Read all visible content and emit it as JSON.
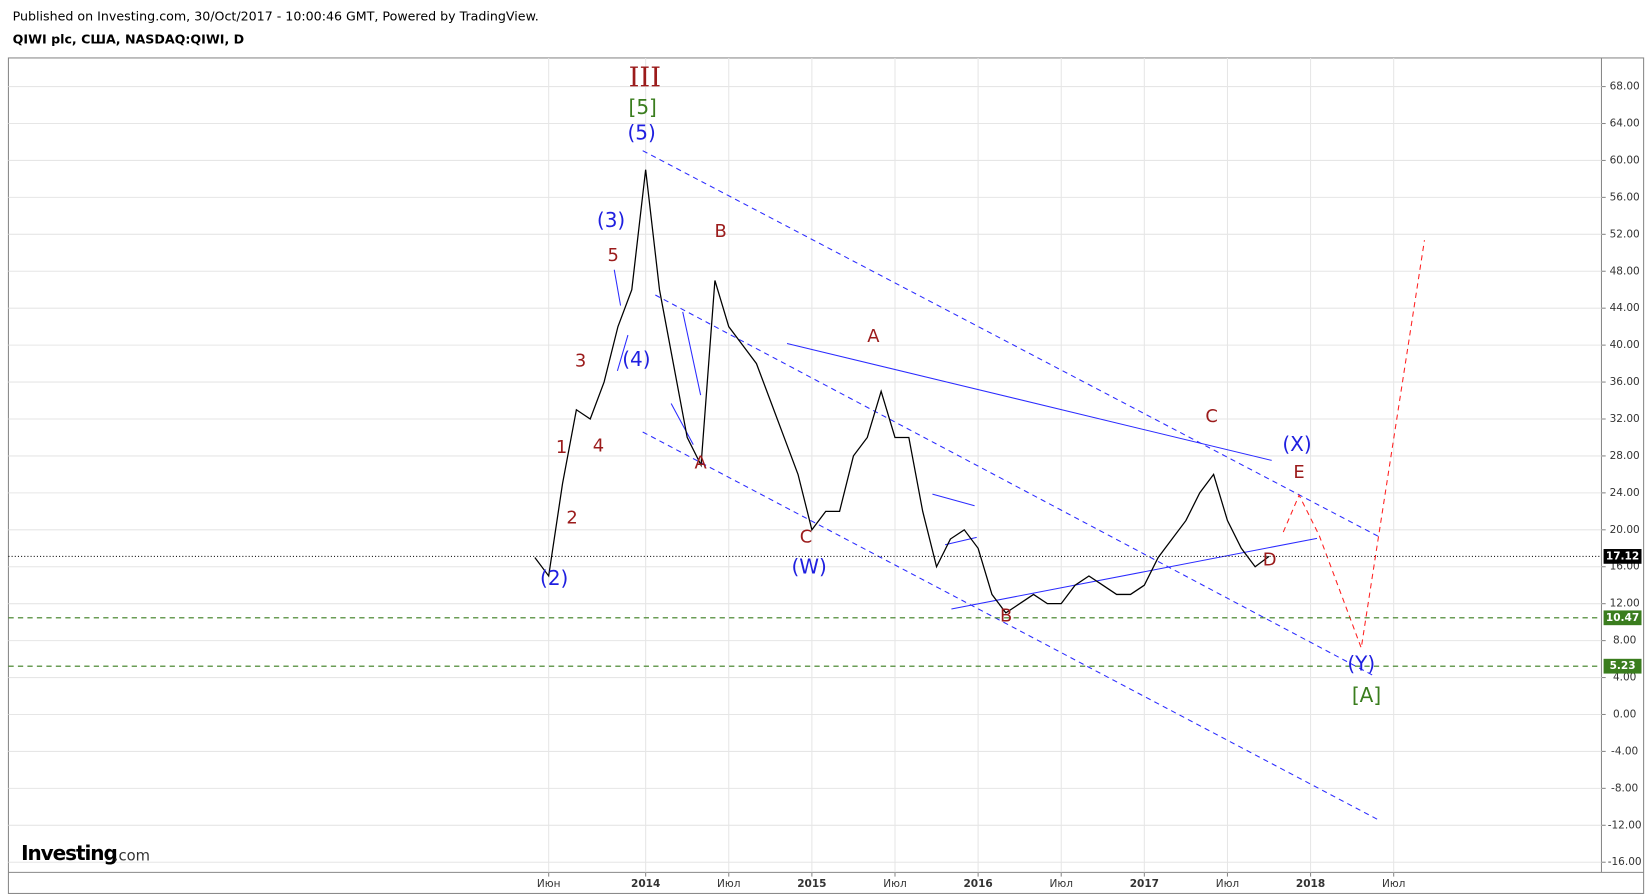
{
  "header": {
    "published": "Published on Investing.com, 30/Oct/2017 - 10:00:46 GMT, Powered by TradingView.",
    "symbol": "QIWI plc, США, NASDAQ:QIWI, D"
  },
  "logo": {
    "brand": "Investing",
    "suffix": ".com"
  },
  "chart_data": {
    "type": "line",
    "xlim": [
      "2010-03",
      "2019-10"
    ],
    "xticks": [
      {
        "value": "2013-06",
        "label": "Июн"
      },
      {
        "value": "2014-01",
        "label": "2014"
      },
      {
        "value": "2014-07",
        "label": "Июл"
      },
      {
        "value": "2015-01",
        "label": "2015"
      },
      {
        "value": "2015-07",
        "label": "Июл"
      },
      {
        "value": "2016-01",
        "label": "2016"
      },
      {
        "value": "2016-07",
        "label": "Июл"
      },
      {
        "value": "2017-01",
        "label": "2017"
      },
      {
        "value": "2017-07",
        "label": "Июл"
      },
      {
        "value": "2018-01",
        "label": "2018"
      },
      {
        "value": "2018-07",
        "label": "Июл"
      }
    ],
    "ylim": [
      -17.1,
      71.1
    ],
    "yticks": [
      {
        "value": 68,
        "label": "68.00"
      },
      {
        "value": 64,
        "label": "64.00"
      },
      {
        "value": 60,
        "label": "60.00"
      },
      {
        "value": 56,
        "label": "56.00"
      },
      {
        "value": 52,
        "label": "52.00"
      },
      {
        "value": 48,
        "label": "48.00"
      },
      {
        "value": 44,
        "label": "44.00"
      },
      {
        "value": 40,
        "label": "40.00"
      },
      {
        "value": 36,
        "label": "36.00"
      },
      {
        "value": 32,
        "label": "32.00"
      },
      {
        "value": 28,
        "label": "28.00"
      },
      {
        "value": 24,
        "label": "24.00"
      },
      {
        "value": 20,
        "label": "20.00"
      },
      {
        "value": 16,
        "label": "16.00"
      },
      {
        "value": 12,
        "label": "12.00"
      },
      {
        "value": 8,
        "label": "8.00"
      },
      {
        "value": 4,
        "label": "4.00"
      },
      {
        "value": 0,
        "label": "0.00"
      },
      {
        "value": -4,
        "label": "-4.00"
      },
      {
        "value": -8,
        "label": "-8.00"
      },
      {
        "value": -12,
        "label": "-12.00"
      },
      {
        "value": -16,
        "label": "-16.00"
      }
    ],
    "grid": true,
    "series": [
      {
        "color": "#000000",
        "x": [
          "2013-05",
          "2013-06",
          "2013-07",
          "2013-08",
          "2013-09",
          "2013-10",
          "2013-11",
          "2013-12",
          "2014-01",
          "2014-02",
          "2014-03",
          "2014-04",
          "2014-05",
          "2014-06",
          "2014-07",
          "2014-08",
          "2014-09",
          "2014-10",
          "2014-11",
          "2014-12",
          "2015-01",
          "2015-02",
          "2015-03",
          "2015-04",
          "2015-05",
          "2015-06",
          "2015-07",
          "2015-08",
          "2015-09",
          "2015-10",
          "2015-11",
          "2015-12",
          "2016-01",
          "2016-02",
          "2016-03",
          "2016-04",
          "2016-05",
          "2016-06",
          "2016-07",
          "2016-08",
          "2016-09",
          "2016-10",
          "2016-11",
          "2016-12",
          "2017-01",
          "2017-02",
          "2017-03",
          "2017-04",
          "2017-05",
          "2017-06",
          "2017-07",
          "2017-08",
          "2017-09",
          "2017-10"
        ],
        "values": [
          17,
          15,
          25,
          33,
          32,
          36,
          42,
          46,
          59,
          46,
          38,
          30,
          27,
          47,
          42,
          40,
          38,
          34,
          30,
          26,
          20,
          22,
          22,
          28,
          30,
          35,
          30,
          30,
          22,
          16,
          19,
          20,
          18,
          13,
          11,
          12,
          13,
          12,
          12,
          14,
          15,
          14,
          13,
          13,
          14,
          17,
          19,
          21,
          24,
          26,
          21,
          18,
          16,
          17.12
        ]
      }
    ],
    "levels": [
      {
        "value": 17.12,
        "color": "#000000",
        "style": "dotted"
      },
      {
        "value": 10.47,
        "color": "#3a7d1e",
        "style": "dashed"
      },
      {
        "value": 5.23,
        "color": "#3a7d1e",
        "style": "dashed"
      }
    ],
    "annotations": [
      {
        "text": "III",
        "color": "#9b1b1b"
      },
      {
        "text": "[5]",
        "color": "#3a7d1e"
      },
      {
        "text": "(5)",
        "color": "#1f1fe0"
      },
      {
        "text": "(3)",
        "color": "#1f1fe0"
      },
      {
        "text": "5",
        "color": "#9b1b1b"
      },
      {
        "text": "3",
        "color": "#9b1b1b"
      },
      {
        "text": "(4)",
        "color": "#1f1fe0"
      },
      {
        "text": "1",
        "color": "#9b1b1b"
      },
      {
        "text": "4",
        "color": "#9b1b1b"
      },
      {
        "text": "2",
        "color": "#9b1b1b"
      },
      {
        "text": "(2)",
        "color": "#1f1fe0"
      },
      {
        "text": "B",
        "color": "#9b1b1b"
      },
      {
        "text": "A",
        "color": "#9b1b1b"
      },
      {
        "text": "C",
        "color": "#9b1b1b"
      },
      {
        "text": "(W)",
        "color": "#1f1fe0"
      },
      {
        "text": "A",
        "color": "#9b1b1b"
      },
      {
        "text": "B",
        "color": "#9b1b1b"
      },
      {
        "text": "C",
        "color": "#9b1b1b"
      },
      {
        "text": "(X)",
        "color": "#1f1fe0"
      },
      {
        "text": "E",
        "color": "#9b1b1b"
      },
      {
        "text": "D",
        "color": "#9b1b1b"
      },
      {
        "text": "(Y)",
        "color": "#1f1fe0"
      },
      {
        "text": "[A]",
        "color": "#3a7d1e"
      }
    ]
  }
}
